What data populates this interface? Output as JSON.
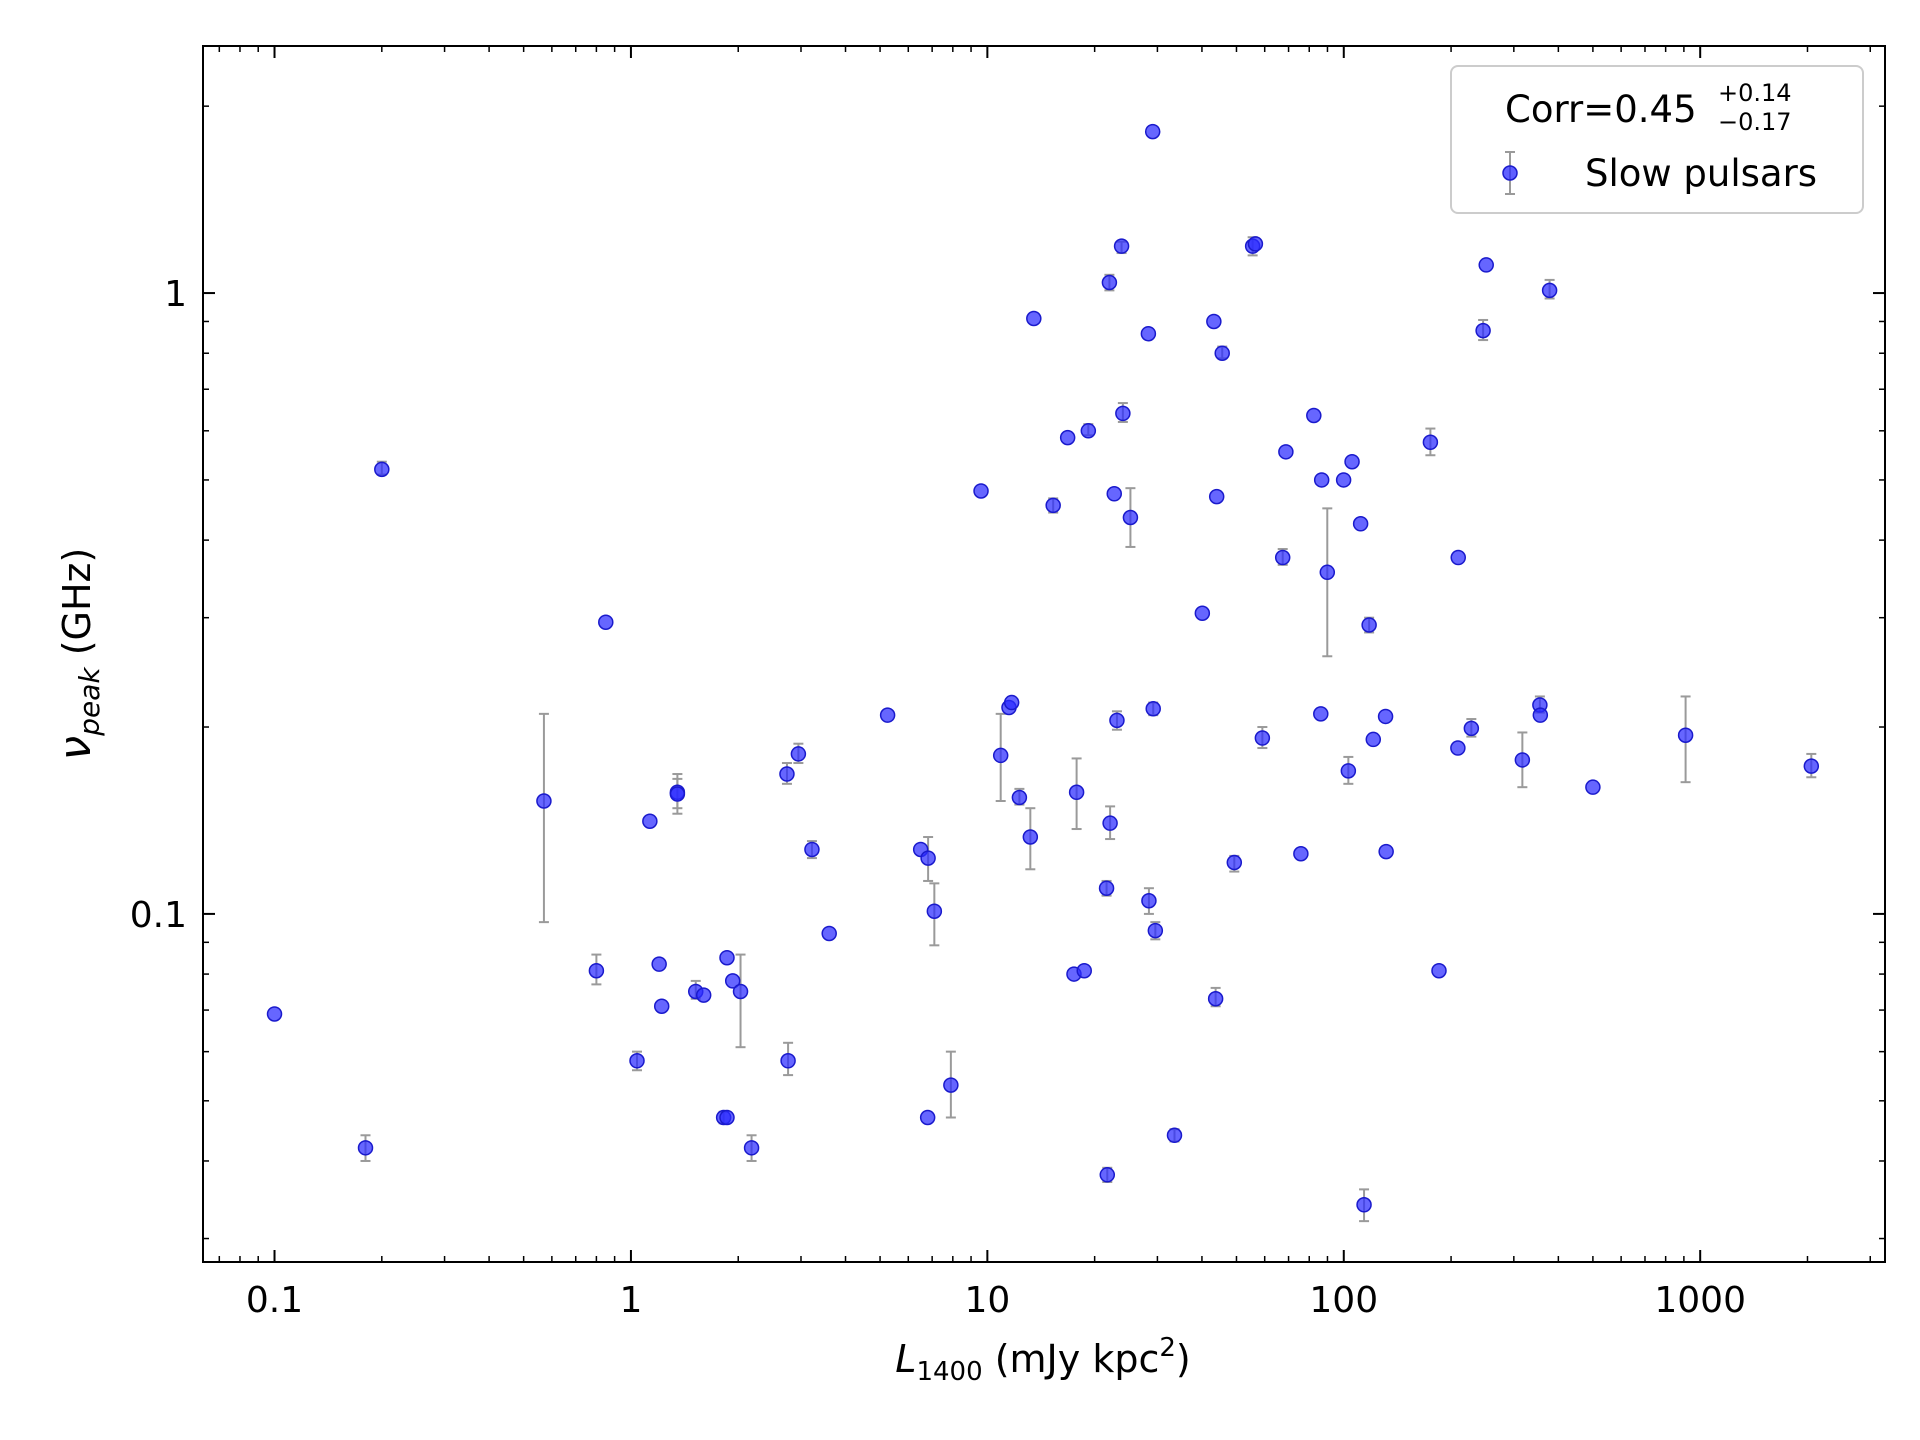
{
  "chart_data": {
    "type": "scatter",
    "xscale": "log",
    "yscale": "log",
    "xlim": [
      0.063,
      3300
    ],
    "ylim": [
      0.0275,
      2.5
    ],
    "xlabel": {
      "main": "L",
      "sub": "1400",
      "rest": " (mJy kpc",
      "sup": "2",
      "end": ")"
    },
    "ylabel": {
      "main": "ν",
      "sub": "peak",
      "rest": " (GHz)"
    },
    "x_ticks": [
      {
        "value": 0.1,
        "label": "0.1"
      },
      {
        "value": 1,
        "label": "1"
      },
      {
        "value": 10,
        "label": "10"
      },
      {
        "value": 100,
        "label": "100"
      },
      {
        "value": 1000,
        "label": "1000"
      }
    ],
    "y_ticks": [
      {
        "value": 0.1,
        "label": "0.1"
      },
      {
        "value": 1,
        "label": "1"
      }
    ],
    "legend": {
      "position": "top-right",
      "corr_prefix": "Corr=0.45",
      "corr_plus": "+0.14",
      "corr_minus": "−0.17",
      "series_label": "Slow pulsars"
    },
    "series": [
      {
        "name": "Slow pulsars",
        "color": "#2b2bff",
        "errorbar_color": "#9a9a9a",
        "points": [
          {
            "x": 0.1,
            "y": 0.069
          },
          {
            "x": 0.18,
            "y": 0.042,
            "ylo": 0.04,
            "yhi": 0.044
          },
          {
            "x": 0.2,
            "y": 0.52,
            "ylo": 0.51,
            "yhi": 0.535
          },
          {
            "x": 0.57,
            "y": 0.152,
            "ylo": 0.097,
            "yhi": 0.21
          },
          {
            "x": 0.8,
            "y": 0.081,
            "ylo": 0.077,
            "yhi": 0.086
          },
          {
            "x": 0.85,
            "y": 0.295
          },
          {
            "x": 1.04,
            "y": 0.058,
            "ylo": 0.056,
            "yhi": 0.06
          },
          {
            "x": 1.13,
            "y": 0.141
          },
          {
            "x": 1.2,
            "y": 0.083
          },
          {
            "x": 1.22,
            "y": 0.071
          },
          {
            "x": 1.35,
            "y": 0.157,
            "ylo": 0.148,
            "yhi": 0.168
          },
          {
            "x": 1.35,
            "y": 0.156,
            "ylo": 0.145,
            "yhi": 0.165
          },
          {
            "x": 1.52,
            "y": 0.075,
            "ylo": 0.073,
            "yhi": 0.078
          },
          {
            "x": 1.6,
            "y": 0.074
          },
          {
            "x": 1.82,
            "y": 0.047,
            "ylo": 0.046,
            "yhi": 0.048
          },
          {
            "x": 1.86,
            "y": 0.047
          },
          {
            "x": 1.86,
            "y": 0.085
          },
          {
            "x": 1.93,
            "y": 0.078
          },
          {
            "x": 2.03,
            "y": 0.075,
            "ylo": 0.061,
            "yhi": 0.086
          },
          {
            "x": 2.18,
            "y": 0.042,
            "ylo": 0.04,
            "yhi": 0.044
          },
          {
            "x": 2.74,
            "y": 0.168,
            "ylo": 0.162,
            "yhi": 0.175
          },
          {
            "x": 2.76,
            "y": 0.058,
            "ylo": 0.055,
            "yhi": 0.062
          },
          {
            "x": 2.95,
            "y": 0.181,
            "ylo": 0.175,
            "yhi": 0.188
          },
          {
            "x": 3.22,
            "y": 0.127,
            "ylo": 0.123,
            "yhi": 0.131
          },
          {
            "x": 3.6,
            "y": 0.093
          },
          {
            "x": 5.25,
            "y": 0.209
          },
          {
            "x": 6.5,
            "y": 0.127
          },
          {
            "x": 6.8,
            "y": 0.047
          },
          {
            "x": 6.82,
            "y": 0.123,
            "ylo": 0.113,
            "yhi": 0.133
          },
          {
            "x": 7.1,
            "y": 0.101,
            "ylo": 0.089,
            "yhi": 0.112
          },
          {
            "x": 7.9,
            "y": 0.053,
            "ylo": 0.047,
            "yhi": 0.06
          },
          {
            "x": 9.6,
            "y": 0.48
          },
          {
            "x": 10.9,
            "y": 0.18,
            "ylo": 0.152,
            "yhi": 0.21
          },
          {
            "x": 11.5,
            "y": 0.215
          },
          {
            "x": 11.7,
            "y": 0.219
          },
          {
            "x": 12.3,
            "y": 0.154,
            "ylo": 0.15,
            "yhi": 0.159
          },
          {
            "x": 13.2,
            "y": 0.133,
            "ylo": 0.118,
            "yhi": 0.148
          },
          {
            "x": 13.5,
            "y": 0.91
          },
          {
            "x": 15.3,
            "y": 0.455,
            "ylo": 0.443,
            "yhi": 0.467
          },
          {
            "x": 16.8,
            "y": 0.585
          },
          {
            "x": 17.5,
            "y": 0.08
          },
          {
            "x": 17.8,
            "y": 0.157,
            "ylo": 0.137,
            "yhi": 0.178
          },
          {
            "x": 18.7,
            "y": 0.081
          },
          {
            "x": 19.2,
            "y": 0.6,
            "ylo": 0.59,
            "yhi": 0.615
          },
          {
            "x": 21.6,
            "y": 0.11,
            "ylo": 0.107,
            "yhi": 0.113
          },
          {
            "x": 21.7,
            "y": 0.038,
            "ylo": 0.037,
            "yhi": 0.039
          },
          {
            "x": 22,
            "y": 1.04,
            "ylo": 1.01,
            "yhi": 1.07
          },
          {
            "x": 22.1,
            "y": 0.14,
            "ylo": 0.132,
            "yhi": 0.149
          },
          {
            "x": 22.7,
            "y": 0.475
          },
          {
            "x": 23.1,
            "y": 0.205,
            "ylo": 0.198,
            "yhi": 0.212
          },
          {
            "x": 23.8,
            "y": 1.19,
            "ylo": 1.16,
            "yhi": 1.21
          },
          {
            "x": 24,
            "y": 0.64,
            "ylo": 0.62,
            "yhi": 0.665
          },
          {
            "x": 25.2,
            "y": 0.435,
            "ylo": 0.39,
            "yhi": 0.485
          },
          {
            "x": 28.3,
            "y": 0.86
          },
          {
            "x": 28.4,
            "y": 0.105,
            "ylo": 0.1,
            "yhi": 0.11
          },
          {
            "x": 29.1,
            "y": 1.82
          },
          {
            "x": 29.2,
            "y": 0.214,
            "ylo": 0.209,
            "yhi": 0.219
          },
          {
            "x": 29.6,
            "y": 0.094,
            "ylo": 0.091,
            "yhi": 0.097
          },
          {
            "x": 33.5,
            "y": 0.044,
            "ylo": 0.043,
            "yhi": 0.045
          },
          {
            "x": 40.1,
            "y": 0.305
          },
          {
            "x": 43.2,
            "y": 0.9
          },
          {
            "x": 43.7,
            "y": 0.073,
            "ylo": 0.071,
            "yhi": 0.076
          },
          {
            "x": 44,
            "y": 0.47
          },
          {
            "x": 45.6,
            "y": 0.8,
            "ylo": 0.785,
            "yhi": 0.82
          },
          {
            "x": 49.3,
            "y": 0.121,
            "ylo": 0.117,
            "yhi": 0.124
          },
          {
            "x": 55.5,
            "y": 1.19,
            "ylo": 1.15,
            "yhi": 1.23
          },
          {
            "x": 56.5,
            "y": 1.2
          },
          {
            "x": 59.1,
            "y": 0.192,
            "ylo": 0.185,
            "yhi": 0.2
          },
          {
            "x": 67.4,
            "y": 0.375,
            "ylo": 0.365,
            "yhi": 0.387
          },
          {
            "x": 68.8,
            "y": 0.555
          },
          {
            "x": 75.8,
            "y": 0.125
          },
          {
            "x": 82.4,
            "y": 0.635
          },
          {
            "x": 86.2,
            "y": 0.21
          },
          {
            "x": 86.7,
            "y": 0.5
          },
          {
            "x": 89.9,
            "y": 0.355,
            "ylo": 0.26,
            "yhi": 0.45
          },
          {
            "x": 99.9,
            "y": 0.5
          },
          {
            "x": 103,
            "y": 0.17,
            "ylo": 0.162,
            "yhi": 0.179
          },
          {
            "x": 105.5,
            "y": 0.535
          },
          {
            "x": 111.5,
            "y": 0.425
          },
          {
            "x": 114,
            "y": 0.034,
            "ylo": 0.032,
            "yhi": 0.036
          },
          {
            "x": 117.8,
            "y": 0.292,
            "ylo": 0.284,
            "yhi": 0.3
          },
          {
            "x": 121,
            "y": 0.191
          },
          {
            "x": 131,
            "y": 0.208
          },
          {
            "x": 131.5,
            "y": 0.126
          },
          {
            "x": 175,
            "y": 0.575,
            "ylo": 0.548,
            "yhi": 0.605
          },
          {
            "x": 185,
            "y": 0.081
          },
          {
            "x": 209,
            "y": 0.185
          },
          {
            "x": 209.5,
            "y": 0.375
          },
          {
            "x": 228,
            "y": 0.199,
            "ylo": 0.193,
            "yhi": 0.206
          },
          {
            "x": 246,
            "y": 0.87,
            "ylo": 0.84,
            "yhi": 0.905
          },
          {
            "x": 251,
            "y": 1.11
          },
          {
            "x": 317,
            "y": 0.177,
            "ylo": 0.16,
            "yhi": 0.196
          },
          {
            "x": 355,
            "y": 0.217,
            "ylo": 0.211,
            "yhi": 0.224
          },
          {
            "x": 356,
            "y": 0.209
          },
          {
            "x": 378,
            "y": 1.01,
            "ylo": 0.98,
            "yhi": 1.05
          },
          {
            "x": 500,
            "y": 0.16
          },
          {
            "x": 910,
            "y": 0.194,
            "ylo": 0.163,
            "yhi": 0.224
          },
          {
            "x": 2050,
            "y": 0.173,
            "ylo": 0.166,
            "yhi": 0.181
          }
        ]
      }
    ]
  }
}
